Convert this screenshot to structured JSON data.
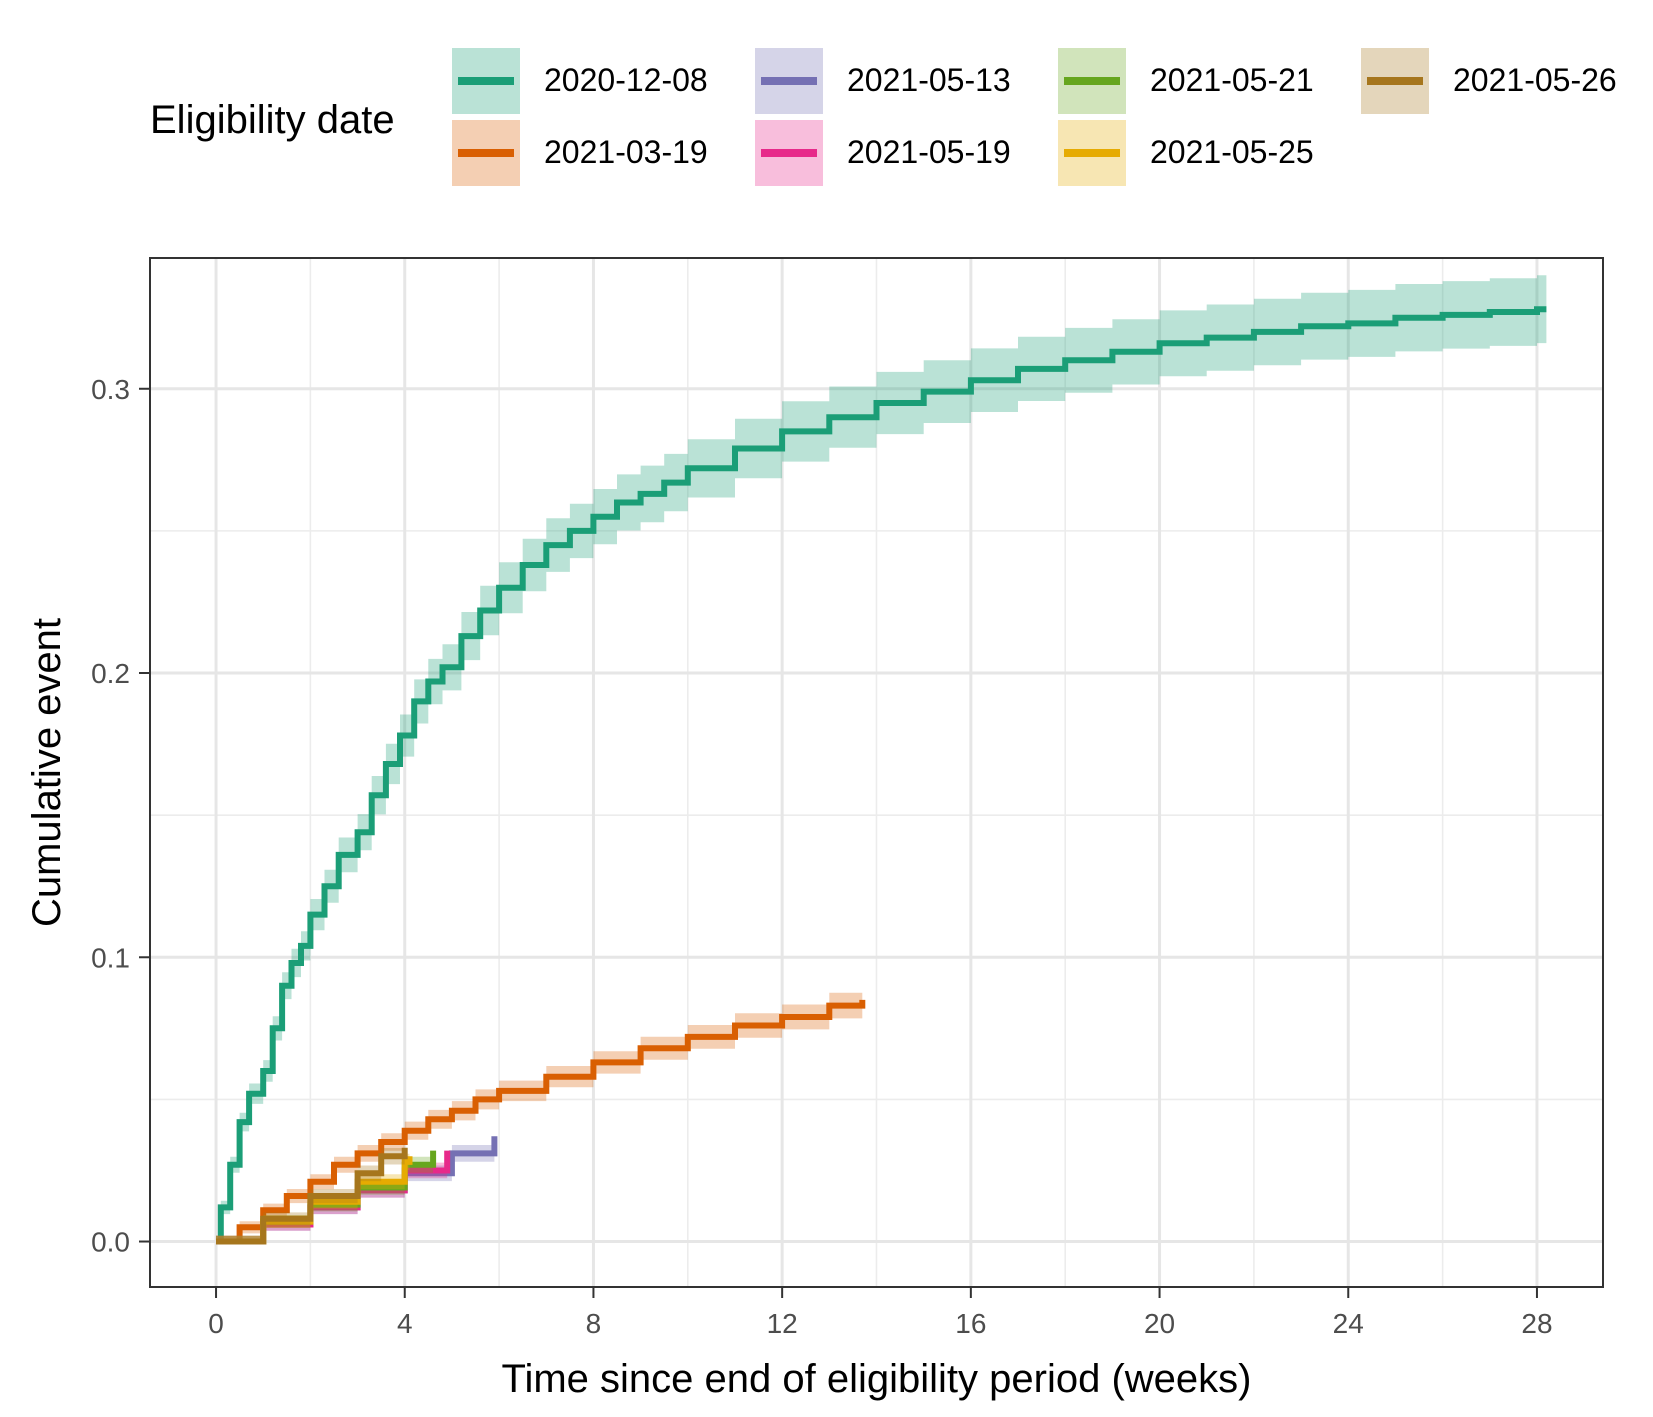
{
  "legend": {
    "title": "Eligibility date",
    "entries": [
      {
        "label": "2020-12-08",
        "color": "#1b9e77"
      },
      {
        "label": "2021-03-19",
        "color": "#d95f02"
      },
      {
        "label": "2021-05-13",
        "color": "#7570b3"
      },
      {
        "label": "2021-05-19",
        "color": "#e7298a"
      },
      {
        "label": "2021-05-21",
        "color": "#66a61e"
      },
      {
        "label": "2021-05-25",
        "color": "#e6ab02"
      },
      {
        "label": "2021-05-26",
        "color": "#a6761d"
      }
    ]
  },
  "chart_data": {
    "type": "line",
    "step": true,
    "confidence_band": true,
    "title": "",
    "xlabel": "Time since end of eligibility period (weeks)",
    "ylabel": "Cumulative event",
    "xlim": [
      -1.4,
      29.4
    ],
    "ylim": [
      -0.016,
      0.346
    ],
    "xticks": [
      0,
      4,
      8,
      12,
      16,
      20,
      24,
      28
    ],
    "yticks": [
      0.0,
      0.1,
      0.2,
      0.3
    ],
    "ytick_labels": [
      "0.0",
      "0.1",
      "0.2",
      "0.3"
    ],
    "grid": true,
    "legend_position": "top",
    "series": [
      {
        "name": "2020-12-08",
        "color": "#1b9e77",
        "x": [
          0,
          0.1,
          0.3,
          0.5,
          0.7,
          1,
          1.2,
          1.4,
          1.6,
          1.8,
          2,
          2.3,
          2.6,
          3,
          3.3,
          3.6,
          3.9,
          4.2,
          4.5,
          4.8,
          5.2,
          5.6,
          6,
          6.5,
          7,
          7.5,
          8,
          8.5,
          9,
          9.5,
          10,
          11,
          12,
          13,
          14,
          15,
          16,
          17,
          18,
          19,
          20,
          21,
          22,
          23,
          24,
          25,
          26,
          27,
          28,
          28.2
        ],
        "y": [
          0,
          0.012,
          0.027,
          0.042,
          0.052,
          0.06,
          0.075,
          0.09,
          0.098,
          0.104,
          0.115,
          0.125,
          0.136,
          0.144,
          0.157,
          0.168,
          0.178,
          0.19,
          0.197,
          0.202,
          0.213,
          0.222,
          0.23,
          0.238,
          0.245,
          0.25,
          0.255,
          0.26,
          0.263,
          0.267,
          0.272,
          0.279,
          0.285,
          0.29,
          0.295,
          0.299,
          0.303,
          0.307,
          0.31,
          0.313,
          0.316,
          0.318,
          0.32,
          0.322,
          0.323,
          0.325,
          0.326,
          0.327,
          0.328,
          0.328
        ]
      },
      {
        "name": "2021-03-19",
        "color": "#d95f02",
        "x": [
          0,
          0.5,
          1,
          1.5,
          2,
          2.5,
          3,
          3.5,
          4,
          4.5,
          5,
          5.5,
          6,
          7,
          8,
          9,
          10,
          11,
          12,
          13,
          13.7
        ],
        "y": [
          0,
          0.005,
          0.011,
          0.016,
          0.021,
          0.027,
          0.031,
          0.035,
          0.039,
          0.043,
          0.046,
          0.05,
          0.053,
          0.058,
          0.063,
          0.068,
          0.072,
          0.076,
          0.079,
          0.083,
          0.085
        ]
      },
      {
        "name": "2021-05-13",
        "color": "#7570b3",
        "x": [
          0,
          1,
          2,
          3,
          4,
          5,
          5.9
        ],
        "y": [
          0,
          0.006,
          0.012,
          0.018,
          0.024,
          0.031,
          0.037
        ]
      },
      {
        "name": "2021-05-19",
        "color": "#e7298a",
        "x": [
          0,
          1,
          2,
          3,
          4,
          4.9
        ],
        "y": [
          0,
          0.006,
          0.012,
          0.018,
          0.025,
          0.032
        ]
      },
      {
        "name": "2021-05-21",
        "color": "#66a61e",
        "x": [
          0,
          1,
          2,
          3,
          4,
          4.6
        ],
        "y": [
          0,
          0.007,
          0.013,
          0.019,
          0.027,
          0.032
        ]
      },
      {
        "name": "2021-05-25",
        "color": "#e6ab02",
        "x": [
          0,
          1,
          2,
          3,
          4,
          4.1
        ],
        "y": [
          0,
          0.007,
          0.014,
          0.021,
          0.028,
          0.03
        ]
      },
      {
        "name": "2021-05-26",
        "color": "#a6761d",
        "x": [
          0,
          1,
          2,
          3,
          3.5,
          4
        ],
        "y": [
          0,
          0.008,
          0.016,
          0.024,
          0.03,
          0.033
        ]
      }
    ]
  }
}
